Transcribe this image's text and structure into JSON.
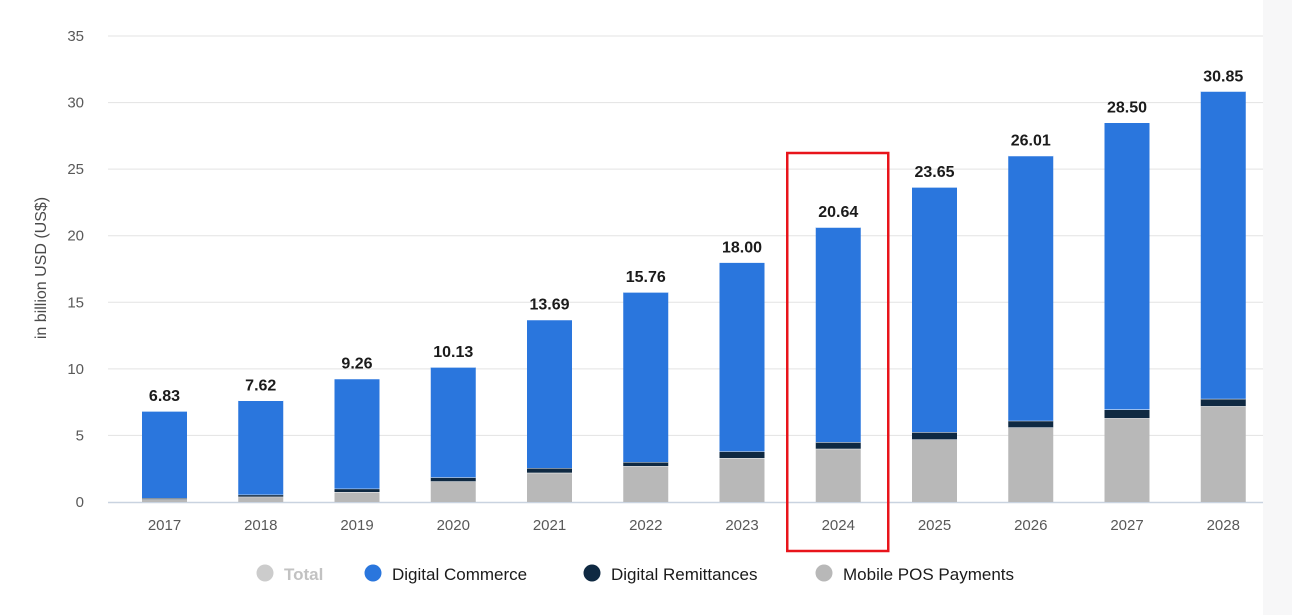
{
  "chart_data": {
    "type": "bar",
    "stacked": true,
    "categories": [
      "2017",
      "2018",
      "2019",
      "2020",
      "2021",
      "2022",
      "2023",
      "2024",
      "2025",
      "2026",
      "2027",
      "2028"
    ],
    "ylabel": "in billion USD (US$)",
    "ylim": [
      0,
      35
    ],
    "yticks": [
      "0",
      "5",
      "10",
      "15",
      "20",
      "25",
      "30",
      "35"
    ],
    "grid": true,
    "totals": [
      "6.83",
      "7.62",
      "9.26",
      "10.13",
      "13.69",
      "15.76",
      "18.00",
      "20.64",
      "23.65",
      "26.01",
      "28.50",
      "30.85"
    ],
    "series": [
      {
        "name": "Mobile POS Payments",
        "color": "#b8b8b8",
        "values": [
          0.2,
          0.4,
          0.75,
          1.55,
          2.2,
          2.7,
          3.3,
          4.0,
          4.7,
          5.6,
          6.3,
          7.2
        ]
      },
      {
        "name": "Digital Remittances",
        "color": "#0f2942",
        "values": [
          0.1,
          0.15,
          0.25,
          0.3,
          0.35,
          0.3,
          0.5,
          0.5,
          0.55,
          0.5,
          0.65,
          0.55
        ]
      },
      {
        "name": "Digital Commerce",
        "color": "#2a76dd",
        "values": [
          6.53,
          7.07,
          8.26,
          8.28,
          11.14,
          12.76,
          14.2,
          16.14,
          18.4,
          19.91,
          21.55,
          23.1
        ]
      }
    ],
    "highlight": {
      "category": "2024",
      "color": "#e8141b"
    },
    "legend": {
      "position": "bottom",
      "items": [
        {
          "label": "Total",
          "color": "#cccccc",
          "active": false
        },
        {
          "label": "Digital Commerce",
          "color": "#2a76dd",
          "active": true
        },
        {
          "label": "Digital Remittances",
          "color": "#0f2942",
          "active": true
        },
        {
          "label": "Mobile POS Payments",
          "color": "#b8b8b8",
          "active": true
        }
      ]
    }
  }
}
